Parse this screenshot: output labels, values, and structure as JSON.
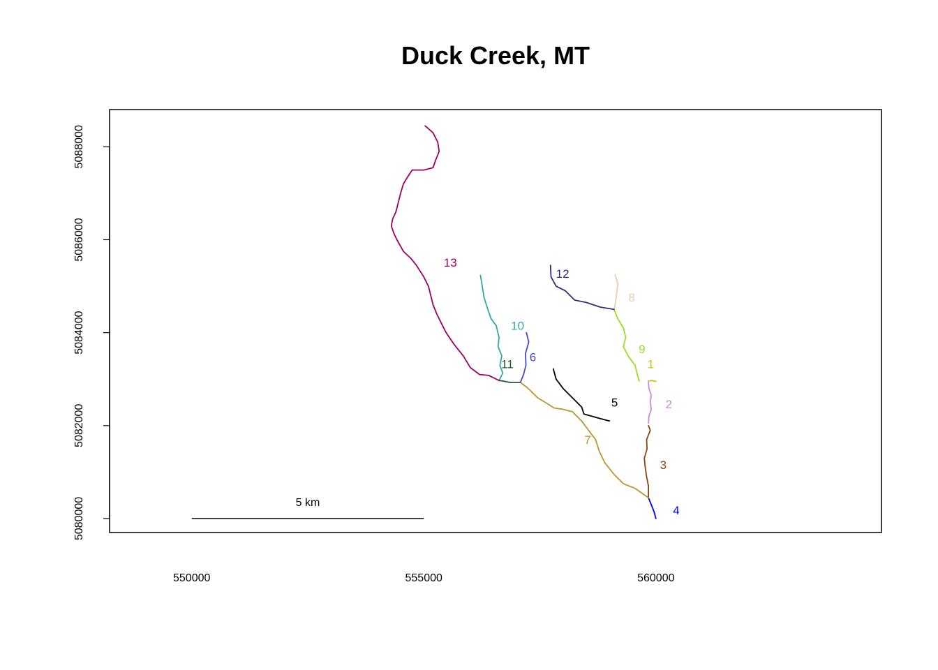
{
  "title": "Duck Creek, MT",
  "x_axis": {
    "range": [
      548230,
      564860
    ],
    "ticks": [
      {
        "value": 550000,
        "label": "550000"
      },
      {
        "value": 555000,
        "label": "555000"
      },
      {
        "value": 560000,
        "label": "560000"
      }
    ]
  },
  "y_axis": {
    "range": [
      5079700,
      5088800
    ],
    "ticks": [
      {
        "value": 5080000,
        "label": "5080000"
      },
      {
        "value": 5082000,
        "label": "5082000"
      },
      {
        "value": 5084000,
        "label": "5084000"
      },
      {
        "value": 5086000,
        "label": "5086000"
      },
      {
        "value": 5088000,
        "label": "5088000"
      }
    ]
  },
  "scale_bar": {
    "from": 550000,
    "to": 555000,
    "y": 5080000,
    "label": "5 km"
  },
  "segments": [
    {
      "id": "1",
      "color": "#c8c800",
      "label_at": [
        559890,
        5083330
      ],
      "path": [
        [
          559840,
          5082960
        ],
        [
          559920,
          5082970
        ],
        [
          560000,
          5082950
        ]
      ]
    },
    {
      "id": "2",
      "color": "#cc88dd",
      "label_at": [
        560280,
        5082460
      ],
      "path": [
        [
          559840,
          5082940
        ],
        [
          559850,
          5082800
        ],
        [
          559900,
          5082650
        ],
        [
          559880,
          5082500
        ],
        [
          559900,
          5082350
        ],
        [
          559850,
          5082200
        ],
        [
          559840,
          5082050
        ]
      ]
    },
    {
      "id": "3",
      "color": "#8b4513",
      "label_at": [
        560160,
        5081160
      ],
      "path": [
        [
          559840,
          5082000
        ],
        [
          559880,
          5081900
        ],
        [
          559800,
          5081700
        ],
        [
          559810,
          5081500
        ],
        [
          559750,
          5081300
        ],
        [
          559770,
          5081100
        ],
        [
          559800,
          5080900
        ],
        [
          559840,
          5080700
        ],
        [
          559840,
          5080450
        ]
      ]
    },
    {
      "id": "4",
      "color": "#0000ff",
      "label_at": [
        560440,
        5080180
      ],
      "path": [
        [
          559840,
          5080450
        ],
        [
          559900,
          5080300
        ],
        [
          559960,
          5080150
        ],
        [
          560000,
          5080000
        ]
      ]
    },
    {
      "id": "5",
      "color": "#000000",
      "label_at": [
        559110,
        5082500
      ],
      "path": [
        [
          557790,
          5083220
        ],
        [
          557850,
          5083000
        ],
        [
          558000,
          5082800
        ],
        [
          558200,
          5082600
        ],
        [
          558400,
          5082400
        ],
        [
          558450,
          5082250
        ],
        [
          558800,
          5082150
        ],
        [
          559000,
          5082100
        ]
      ]
    },
    {
      "id": "6",
      "color": "#4848c8",
      "label_at": [
        557350,
        5083480
      ],
      "path": [
        [
          557210,
          5084000
        ],
        [
          557260,
          5083800
        ],
        [
          557190,
          5083550
        ],
        [
          557200,
          5083300
        ],
        [
          557150,
          5083100
        ],
        [
          557080,
          5082930
        ]
      ]
    },
    {
      "id": "7",
      "color": "#b8962e",
      "label_at": [
        558530,
        5081700
      ],
      "path": [
        [
          557080,
          5082930
        ],
        [
          557250,
          5082800
        ],
        [
          557450,
          5082600
        ],
        [
          557650,
          5082480
        ],
        [
          557800,
          5082380
        ],
        [
          558000,
          5082350
        ],
        [
          558200,
          5082300
        ],
        [
          558400,
          5082100
        ],
        [
          558550,
          5081900
        ],
        [
          558700,
          5081700
        ],
        [
          558780,
          5081450
        ],
        [
          558900,
          5081200
        ],
        [
          559100,
          5080950
        ],
        [
          559300,
          5080750
        ],
        [
          559550,
          5080650
        ],
        [
          559840,
          5080450
        ]
      ]
    },
    {
      "id": "8",
      "color": "#e8cdb0",
      "label_at": [
        559480,
        5084760
      ],
      "path": [
        [
          559120,
          5085250
        ],
        [
          559180,
          5085050
        ],
        [
          559150,
          5084800
        ],
        [
          559120,
          5084600
        ],
        [
          559100,
          5084500
        ]
      ]
    },
    {
      "id": "9",
      "color": "#99dd22",
      "label_at": [
        559700,
        5083650
      ],
      "path": [
        [
          559100,
          5084500
        ],
        [
          559180,
          5084300
        ],
        [
          559300,
          5084100
        ],
        [
          559350,
          5083900
        ],
        [
          559300,
          5083700
        ],
        [
          559400,
          5083500
        ],
        [
          559550,
          5083300
        ],
        [
          559600,
          5083100
        ],
        [
          559640,
          5082960
        ]
      ]
    },
    {
      "id": "10",
      "color": "#33aa99",
      "label_at": [
        557020,
        5084150
      ],
      "path": [
        [
          556220,
          5085230
        ],
        [
          556260,
          5085000
        ],
        [
          556300,
          5084750
        ],
        [
          556380,
          5084500
        ],
        [
          556450,
          5084300
        ],
        [
          556560,
          5084150
        ],
        [
          556620,
          5083900
        ],
        [
          556600,
          5083700
        ],
        [
          556680,
          5083500
        ],
        [
          556640,
          5083300
        ],
        [
          556700,
          5083130
        ],
        [
          556620,
          5082970
        ]
      ]
    },
    {
      "id": "11",
      "color": "#225533",
      "label_at": [
        556800,
        5083330
      ],
      "path": [
        [
          556620,
          5082970
        ],
        [
          556700,
          5082960
        ],
        [
          556850,
          5082930
        ],
        [
          557080,
          5082930
        ]
      ]
    },
    {
      "id": "12",
      "color": "#2d2d7a",
      "label_at": [
        557990,
        5085270
      ],
      "path": [
        [
          557730,
          5085450
        ],
        [
          557740,
          5085200
        ],
        [
          557850,
          5085000
        ],
        [
          558050,
          5084900
        ],
        [
          558250,
          5084700
        ],
        [
          558500,
          5084650
        ],
        [
          558800,
          5084550
        ],
        [
          559100,
          5084500
        ]
      ]
    },
    {
      "id": "13",
      "color": "#990066",
      "label_at": [
        555570,
        5085510
      ],
      "path": [
        [
          555030,
          5088450
        ],
        [
          555200,
          5088300
        ],
        [
          555300,
          5088100
        ],
        [
          555330,
          5087900
        ],
        [
          555250,
          5087700
        ],
        [
          555200,
          5087550
        ],
        [
          555000,
          5087500
        ],
        [
          554750,
          5087500
        ],
        [
          554650,
          5087350
        ],
        [
          554560,
          5087200
        ],
        [
          554500,
          5087000
        ],
        [
          554450,
          5086800
        ],
        [
          554400,
          5086600
        ],
        [
          554330,
          5086450
        ],
        [
          554300,
          5086300
        ],
        [
          554350,
          5086150
        ],
        [
          554420,
          5086000
        ],
        [
          554560,
          5085750
        ],
        [
          554720,
          5085600
        ],
        [
          554840,
          5085450
        ],
        [
          555000,
          5085200
        ],
        [
          555100,
          5085000
        ],
        [
          555150,
          5084800
        ],
        [
          555200,
          5084600
        ],
        [
          555280,
          5084400
        ],
        [
          555380,
          5084200
        ],
        [
          555480,
          5084000
        ],
        [
          555650,
          5083750
        ],
        [
          555850,
          5083500
        ],
        [
          556000,
          5083250
        ],
        [
          556200,
          5083100
        ],
        [
          556400,
          5083080
        ],
        [
          556620,
          5082970
        ]
      ]
    }
  ]
}
